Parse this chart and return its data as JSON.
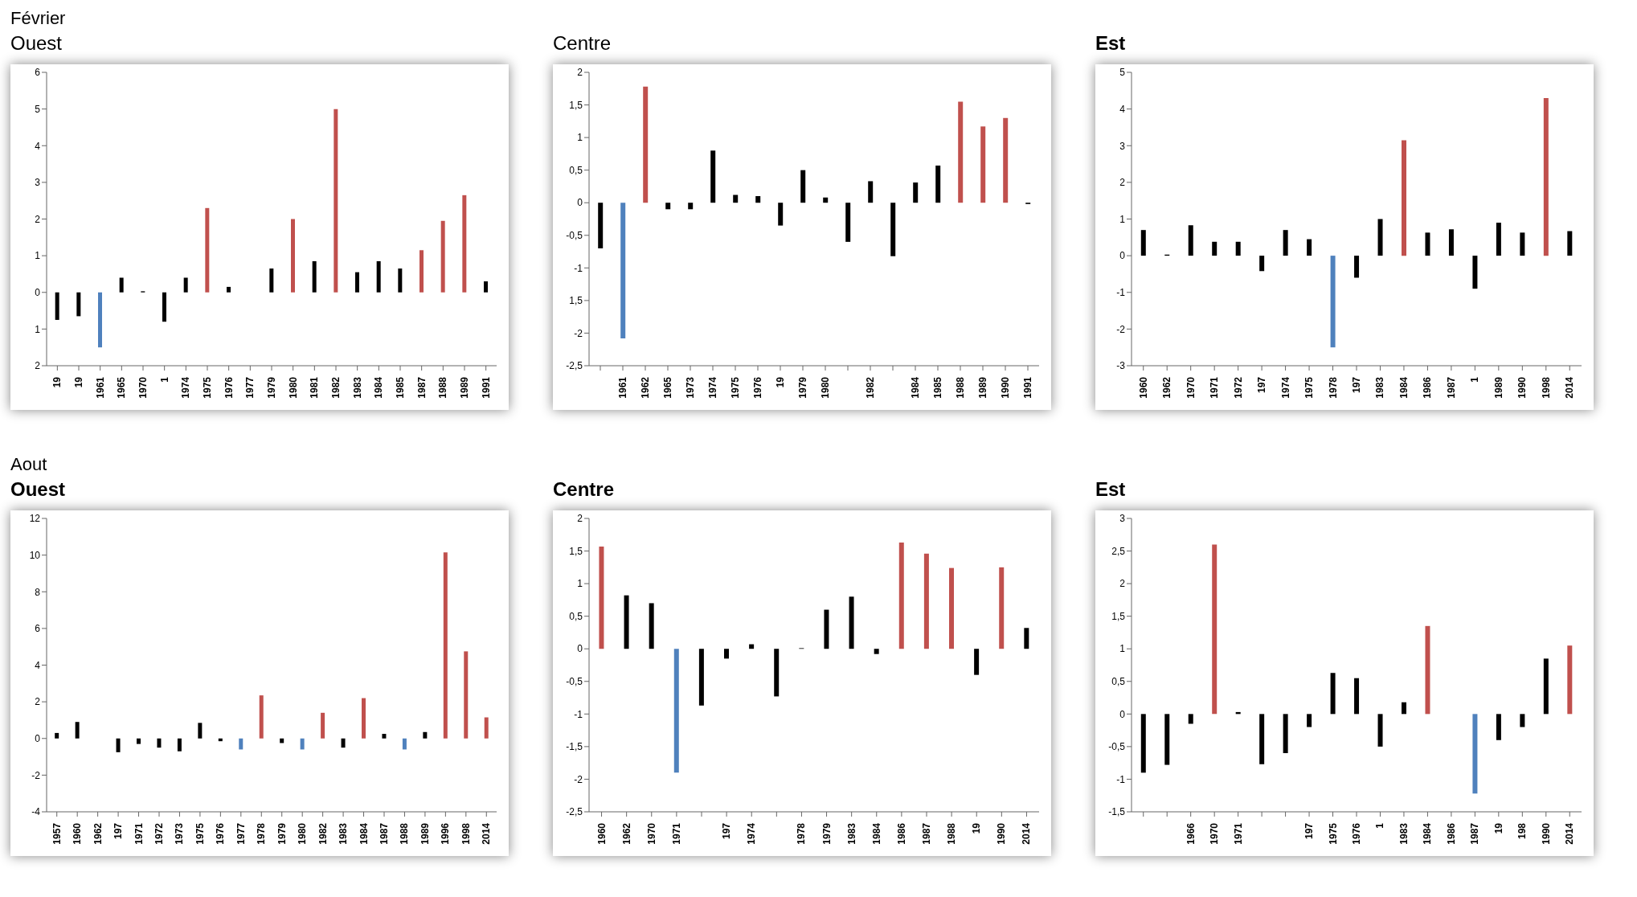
{
  "chart_data": [
    {
      "type": "bar",
      "title": "Ouest",
      "annotations": [
        "Février"
      ],
      "categories": [
        "19",
        "19",
        "1961",
        "1965",
        "1970",
        "1",
        "1974",
        "1975",
        "1976",
        "1977",
        "1979",
        "1980",
        "1981",
        "1982",
        "1983",
        "1984",
        "1985",
        "1987",
        "1988",
        "1989",
        "1991"
      ],
      "values": [
        -0.75,
        -0.65,
        -1.5,
        0.4,
        0.03,
        -0.8,
        0.4,
        2.3,
        0.15,
        0,
        0.65,
        2.0,
        0.85,
        5.0,
        0.55,
        0.85,
        0.65,
        1.15,
        1.95,
        2.65,
        0.3
      ],
      "colors": [
        "#000000",
        "#000000",
        "#4f81bd",
        "#000000",
        "#000000",
        "#000000",
        "#000000",
        "#c0504d",
        "#000000",
        "#000000",
        "#000000",
        "#c0504d",
        "#000000",
        "#c0504d",
        "#000000",
        "#000000",
        "#000000",
        "#c0504d",
        "#c0504d",
        "#c0504d",
        "#000000"
      ],
      "ylim": [
        -2,
        6
      ],
      "yticks": [
        {
          "value": -2,
          "label": "2"
        },
        {
          "value": -1,
          "label": "1"
        },
        0,
        1,
        2,
        3,
        4,
        5,
        6
      ]
    },
    {
      "type": "bar",
      "title": "Centre",
      "categories": [
        null,
        "1961",
        "1962",
        "1965",
        "1973",
        "1974",
        "1975",
        "1976",
        "19",
        "1979",
        "1980",
        null,
        "1982",
        null,
        "1984",
        "1985",
        "1988",
        "1989",
        "1990",
        "1991"
      ],
      "values": [
        -0.7,
        -2.08,
        1.78,
        -0.1,
        -0.1,
        0.8,
        0.12,
        0.1,
        -0.35,
        0.5,
        0.08,
        -0.6,
        0.33,
        -0.82,
        0.31,
        0.57,
        1.55,
        1.17,
        1.3,
        -0.02
      ],
      "colors": [
        "#000000",
        "#4f81bd",
        "#c0504d",
        "#000000",
        "#000000",
        "#000000",
        "#000000",
        "#000000",
        "#000000",
        "#000000",
        "#000000",
        "#000000",
        "#000000",
        "#000000",
        "#000000",
        "#000000",
        "#c0504d",
        "#c0504d",
        "#c0504d",
        "#000000"
      ],
      "ylim": [
        -2.5,
        2
      ],
      "yticks": [
        {
          "value": -2.5,
          "label": "-2,5"
        },
        -2,
        {
          "value": -1.5,
          "label": "1,5"
        },
        -1,
        {
          "value": -0.5,
          "label": "-0,5"
        },
        0,
        {
          "value": 0.5,
          "label": "0,5"
        },
        1,
        {
          "value": 1.5,
          "label": "1,5"
        },
        2
      ]
    },
    {
      "type": "bar",
      "title": "Est",
      "categories": [
        "1960",
        "1962",
        "1970",
        "1971",
        "1972",
        "197",
        "1974",
        "1975",
        "1978",
        "197",
        "1983",
        "1984",
        "1986",
        "1987",
        "1",
        "1989",
        "1990",
        "1998",
        "2014"
      ],
      "values": [
        0.7,
        0.03,
        0.83,
        0.38,
        0.38,
        -0.42,
        0.7,
        0.45,
        -2.5,
        -0.6,
        1.0,
        3.15,
        0.63,
        0.72,
        -0.9,
        0.9,
        0.63,
        4.3,
        0.67
      ],
      "colors": [
        "#000000",
        "#000000",
        "#000000",
        "#000000",
        "#000000",
        "#000000",
        "#000000",
        "#000000",
        "#4f81bd",
        "#000000",
        "#000000",
        "#c0504d",
        "#000000",
        "#000000",
        "#000000",
        "#000000",
        "#000000",
        "#c0504d",
        "#000000"
      ],
      "ylim": [
        -3,
        5
      ],
      "yticks": [
        -3,
        -2,
        -1,
        0,
        1,
        2,
        3,
        4,
        5
      ]
    },
    {
      "type": "bar",
      "title": "Ouest",
      "annotations": [
        "Aout"
      ],
      "categories": [
        "1957",
        "1960",
        "1962",
        "197",
        "1971",
        "1972",
        "1973",
        "1975",
        "1976",
        "1977",
        "1978",
        "1979",
        "1980",
        "1982",
        "1983",
        "1984",
        "1987",
        "1988",
        "1989",
        "1996",
        "1998",
        "2014"
      ],
      "values": [
        0.3,
        0.9,
        null,
        -0.75,
        -0.3,
        -0.5,
        -0.7,
        0.85,
        -0.15,
        -0.6,
        2.35,
        -0.25,
        -0.6,
        1.4,
        -0.5,
        2.2,
        0.25,
        -0.6,
        0.35,
        10.15,
        4.75,
        1.15
      ],
      "colors": [
        "#000000",
        "#000000",
        "#4f81bd",
        "#000000",
        "#000000",
        "#000000",
        "#000000",
        "#000000",
        "#000000",
        "#4f81bd",
        "#c0504d",
        "#000000",
        "#4f81bd",
        "#c0504d",
        "#000000",
        "#c0504d",
        "#000000",
        "#4f81bd",
        "#000000",
        "#c0504d",
        "#c0504d",
        "#c0504d"
      ],
      "ylim": [
        -4,
        12
      ],
      "yticks": [
        -4,
        -2,
        0,
        2,
        4,
        6,
        8,
        10,
        12
      ]
    },
    {
      "type": "bar",
      "title": "Centre",
      "categories": [
        "1960",
        "1962",
        "1970",
        "1971",
        null,
        "197",
        "1974",
        null,
        "1978",
        "1979",
        "1983",
        "1984",
        "1986",
        "1987",
        "1988",
        "19",
        "1990",
        "2014"
      ],
      "values": [
        1.57,
        0.82,
        0.7,
        -1.9,
        -0.87,
        -0.15,
        0.07,
        -0.73,
        0.01,
        0.6,
        0.8,
        -0.08,
        1.63,
        1.46,
        1.24,
        -0.4,
        1.25,
        0.32
      ],
      "colors": [
        "#c0504d",
        "#000000",
        "#000000",
        "#4f81bd",
        "#000000",
        "#000000",
        "#000000",
        "#000000",
        "#000000",
        "#000000",
        "#000000",
        "#000000",
        "#c0504d",
        "#c0504d",
        "#c0504d",
        "#000000",
        "#c0504d",
        "#000000"
      ],
      "ylim": [
        -2.5,
        2
      ],
      "yticks": [
        {
          "value": -2.5,
          "label": "-2,5"
        },
        -2,
        {
          "value": -1.5,
          "label": "-1,5"
        },
        -1,
        {
          "value": -0.5,
          "label": "-0,5"
        },
        0,
        {
          "value": 0.5,
          "label": "0,5"
        },
        1,
        {
          "value": 1.5,
          "label": "1,5"
        },
        2
      ]
    },
    {
      "type": "bar",
      "title": "Est",
      "categories": [
        null,
        null,
        "1966",
        "1970",
        "1971",
        null,
        null,
        "197",
        "1975",
        "1976",
        "1",
        "1983",
        "1984",
        "1986",
        "1987",
        "19",
        "198",
        "1990",
        "2014"
      ],
      "values": [
        -0.9,
        -0.78,
        -0.15,
        2.6,
        0.03,
        -0.77,
        -0.6,
        -0.2,
        0.63,
        0.55,
        -0.5,
        0.18,
        1.35,
        null,
        -1.22,
        -0.4,
        -0.2,
        0.85,
        1.05
      ],
      "colors": [
        "#000000",
        "#000000",
        "#000000",
        "#c0504d",
        "#000000",
        "#000000",
        "#000000",
        "#000000",
        "#000000",
        "#000000",
        "#000000",
        "#000000",
        "#c0504d",
        "#000000",
        "#4f81bd",
        "#000000",
        "#000000",
        "#000000",
        "#c0504d"
      ],
      "ylim": [
        -1.5,
        3
      ],
      "yticks": [
        {
          "value": -1.5,
          "label": "-1,5"
        },
        -1,
        {
          "value": -0.5,
          "label": "-0,5"
        },
        0,
        {
          "value": 0.5,
          "label": "0,5"
        },
        1,
        {
          "value": 1.5,
          "label": "1,5"
        },
        2,
        {
          "value": 2.5,
          "label": "2,5"
        },
        3
      ]
    }
  ]
}
